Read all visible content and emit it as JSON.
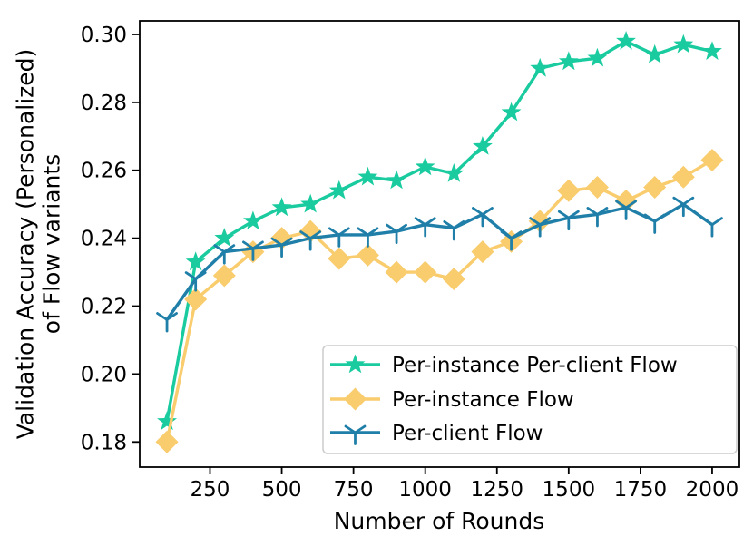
{
  "chart_data": {
    "type": "line",
    "title": "",
    "xlabel": "Number of Rounds",
    "ylabel": "Validation Accuracy (Personalized)\nof Flow variants",
    "xlim": [
      5,
      2095
    ],
    "ylim": [
      0.1726,
      0.304
    ],
    "grid": false,
    "legend_position": "lower right inside axes",
    "xticks": [
      250,
      500,
      750,
      1000,
      1250,
      1500,
      1750,
      2000
    ],
    "xtick_labels": [
      "250",
      "500",
      "750",
      "1000",
      "1250",
      "1500",
      "1750",
      "2000"
    ],
    "yticks": [
      0.18,
      0.2,
      0.22,
      0.24,
      0.26,
      0.28,
      0.3
    ],
    "ytick_labels": [
      "0.18",
      "0.20",
      "0.22",
      "0.24",
      "0.26",
      "0.28",
      "0.30"
    ],
    "x": [
      100,
      200,
      300,
      400,
      500,
      600,
      700,
      800,
      900,
      1000,
      1100,
      1200,
      1300,
      1400,
      1500,
      1600,
      1700,
      1800,
      1900,
      2000
    ],
    "series": [
      {
        "name": "Per-instance Per-client Flow",
        "slug": "per-instance-per-client-flow",
        "color": "#19CB9F",
        "marker": "star",
        "values": [
          0.186,
          0.233,
          0.24,
          0.245,
          0.249,
          0.25,
          0.254,
          0.258,
          0.257,
          0.261,
          0.259,
          0.267,
          0.277,
          0.29,
          0.292,
          0.293,
          0.298,
          0.294,
          0.297,
          0.295
        ]
      },
      {
        "name": "Per-instance Flow",
        "slug": "per-instance-flow",
        "color": "#F9CC6D",
        "marker": "diamond",
        "values": [
          0.18,
          0.222,
          0.229,
          0.236,
          0.24,
          0.242,
          0.234,
          0.235,
          0.23,
          0.23,
          0.228,
          0.236,
          0.239,
          0.245,
          0.254,
          0.255,
          0.251,
          0.255,
          0.258,
          0.263
        ]
      },
      {
        "name": "Per-client Flow",
        "slug": "per-client-flow",
        "color": "#1F7FA8",
        "marker": "tri-down",
        "values": [
          0.216,
          0.228,
          0.236,
          0.237,
          0.238,
          0.24,
          0.241,
          0.241,
          0.242,
          0.244,
          0.243,
          0.247,
          0.24,
          0.244,
          0.246,
          0.247,
          0.249,
          0.245,
          0.25,
          0.244
        ]
      }
    ],
    "colors": {
      "axis": "#000000",
      "legend_border": "#cccccc",
      "background": "#ffffff"
    }
  }
}
